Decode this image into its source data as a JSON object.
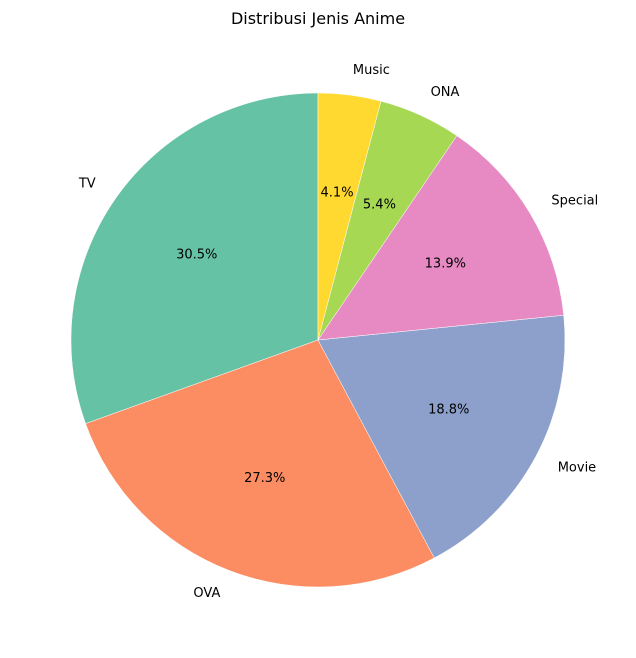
{
  "chart_data": {
    "type": "pie",
    "title": "Distribusi Jenis Anime",
    "categories": [
      "TV",
      "OVA",
      "Movie",
      "Special",
      "ONA",
      "Music"
    ],
    "values": [
      30.5,
      27.3,
      18.8,
      13.9,
      5.4,
      4.1
    ],
    "value_labels": [
      "30.5%",
      "27.3%",
      "18.8%",
      "13.9%",
      "5.4%",
      "4.1%"
    ],
    "colors": [
      "#66c2a5",
      "#fc8d62",
      "#8da0cb",
      "#e78ac3",
      "#a6d854",
      "#ffd92f"
    ],
    "start_angle": 90,
    "direction": "counterclockwise",
    "legend": "none"
  }
}
